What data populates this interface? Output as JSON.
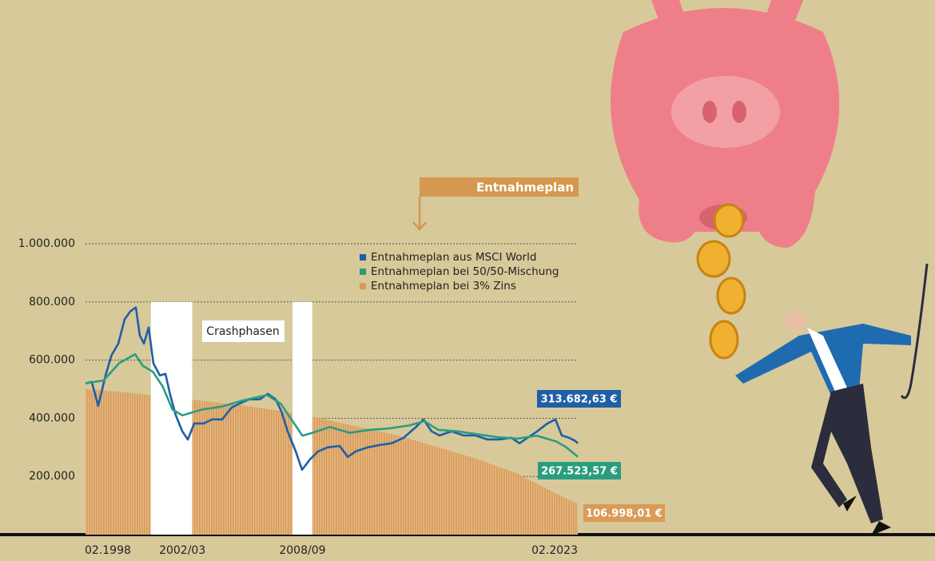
{
  "chart_data": {
    "type": "line",
    "annotation": "Entnahmeplan",
    "crash_label": "Crashphasen",
    "crash_phases": [
      [
        2001.4,
        2003.5
      ],
      [
        2008.6,
        2009.6
      ]
    ],
    "withdrawal_start": 2015.05,
    "xlim": [
      1998.083,
      2023.083
    ],
    "xticks": [
      {
        "value": 1998.083,
        "label": "02.1998"
      },
      {
        "value": 2003.0,
        "label": "2002/03"
      },
      {
        "value": 2009.1,
        "label": "2008/09"
      },
      {
        "value": 2023.083,
        "label": "02.2023"
      }
    ],
    "ylim": [
      0,
      1000000
    ],
    "yticks": [
      {
        "value": 200000,
        "label": "200.000"
      },
      {
        "value": 400000,
        "label": "400.000"
      },
      {
        "value": 600000,
        "label": "600.000"
      },
      {
        "value": 800000,
        "label": "800.000"
      },
      {
        "value": 1000000,
        "label": "1.000.000"
      }
    ],
    "grid": true,
    "series": [
      {
        "name": "Entnahmeplan aus MSCI World",
        "color": "#1f5fa6",
        "style": "line",
        "end_label": "313.682,63 €",
        "x": [
          1998.083,
          1998.4,
          1998.73,
          1999.1,
          1999.4,
          1999.75,
          2000.07,
          2000.35,
          2000.64,
          2000.84,
          2001.05,
          2001.29,
          2001.53,
          2001.86,
          2002.14,
          2002.39,
          2002.67,
          2003.0,
          2003.28,
          2003.6,
          2004.09,
          2004.5,
          2005.02,
          2005.51,
          2005.92,
          2006.4,
          2006.93,
          2007.34,
          2007.74,
          2008.03,
          2008.35,
          2008.76,
          2009.08,
          2009.49,
          2009.89,
          2010.38,
          2010.99,
          2011.4,
          2011.8,
          2012.41,
          2013.02,
          2013.63,
          2014.24,
          2014.85,
          2015.25,
          2015.66,
          2016.06,
          2016.67,
          2017.28,
          2017.89,
          2018.5,
          2019.1,
          2019.71,
          2020.12,
          2020.53,
          2021.02,
          2021.54,
          2021.95,
          2022.27,
          2022.64,
          2022.96,
          2023.083
        ],
        "values": [
          520000,
          525000,
          443000,
          547000,
          616000,
          657000,
          740000,
          767000,
          781000,
          685000,
          657000,
          712000,
          589000,
          547000,
          553000,
          479000,
          410000,
          355000,
          327000,
          382000,
          382000,
          396000,
          396000,
          437000,
          451000,
          465000,
          465000,
          484000,
          465000,
          424000,
          355000,
          286000,
          223000,
          259000,
          286000,
          300000,
          305000,
          267000,
          286000,
          300000,
          308000,
          314000,
          333000,
          369000,
          396000,
          355000,
          341000,
          355000,
          341000,
          341000,
          327000,
          327000,
          333000,
          314000,
          333000,
          355000,
          382000,
          396000,
          341000,
          333000,
          322000,
          313682.63
        ]
      },
      {
        "name": "Entnahmeplan bei 50/50-Mischung",
        "color": "#2a9d80",
        "style": "line",
        "end_label": "267.523,57 €",
        "x": [
          1998.083,
          1999.0,
          1999.8,
          2000.6,
          2001.0,
          2001.5,
          2002.0,
          2002.5,
          2003.0,
          2004.0,
          2005.0,
          2006.0,
          2007.3,
          2008.0,
          2008.7,
          2009.1,
          2009.6,
          2010.5,
          2011.5,
          2012.5,
          2013.5,
          2014.5,
          2015.3,
          2016.0,
          2017.0,
          2018.0,
          2019.0,
          2020.0,
          2021.0,
          2022.0,
          2022.5,
          2023.083
        ],
        "values": [
          520000,
          530000,
          590000,
          620000,
          580000,
          560000,
          510000,
          430000,
          410000,
          430000,
          440000,
          460000,
          480000,
          450000,
          380000,
          340000,
          350000,
          370000,
          350000,
          360000,
          365000,
          375000,
          390000,
          360000,
          355000,
          345000,
          335000,
          330000,
          340000,
          320000,
          300000,
          267523.57
        ]
      },
      {
        "name": "Entnahmeplan bei 3% Zins",
        "color": "#d99b55",
        "style": "area",
        "end_label": "106.998,01 €",
        "x": [
          1998.083,
          2000.0,
          2002.0,
          2004.0,
          2006.0,
          2008.0,
          2010.0,
          2012.0,
          2014.0,
          2016.0,
          2018.0,
          2020.0,
          2022.0,
          2023.083
        ],
        "values": [
          500000,
          490000,
          475000,
          460000,
          445000,
          425000,
          400000,
          370000,
          340000,
          300000,
          260000,
          210000,
          140000,
          106998.01
        ]
      }
    ]
  }
}
